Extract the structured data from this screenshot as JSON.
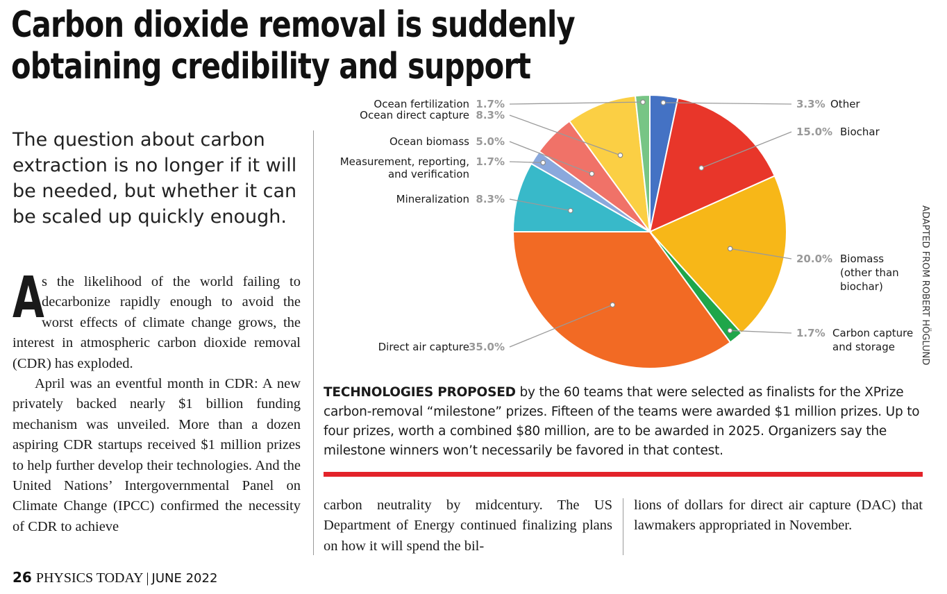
{
  "article": {
    "headline": "Carbon dioxide removal is suddenly obtaining credibility and support",
    "subhead": "The question about carbon extraction is no longer if it will be needed, but whether it can be scaled up quickly enough.",
    "dropcap": "A",
    "para1": "s the likelihood of the world failing to decarbonize rapidly enough to avoid the worst effects of climate change grows, the interest in atmospheric carbon dioxide removal (CDR) has exploded.",
    "para2": "April was an eventful month in CDR: A new privately backed nearly $1 billion funding mechanism was unveiled. More than a dozen aspiring CDR startups received $1 million prizes to help further develop their technologies. And the United Nations’ Intergovernmental Panel on Climate Change (IPCC) confirmed the necessity of CDR to achieve",
    "mid_text": "carbon neutrality by midcentury. The US Department of Energy continued finalizing plans on how it will spend the bil-",
    "right_text": "lions of dollars for direct air capture (DAC) that lawmakers appropriated in November."
  },
  "caption": {
    "lead": "TECHNOLOGIES PROPOSED",
    "text": " by the 60 teams that were selected as finalists for the XPrize carbon-removal “milestone” prizes. Fifteen of the teams were awarded $1 million prizes. Up to four prizes, worth a combined $80 million, are to be awarded in 2025. Organizers say the milestone winners won’t necessarily be favored in that contest."
  },
  "credit": "ADAPTED FROM ROBERT HÖGLUND",
  "footer": {
    "page": "26",
    "magazine": "PHYSICS TODAY",
    "separator": "|",
    "date": "JUNE 2022"
  },
  "chart_data": {
    "type": "pie",
    "slices": [
      {
        "label": "Other",
        "value": 3.3,
        "pct": "3.3%",
        "color": "#4472c4",
        "side": "right"
      },
      {
        "label": "Biochar",
        "value": 15.0,
        "pct": "15.0%",
        "color": "#e8362a",
        "side": "right"
      },
      {
        "label": "Biomass (other than biochar)",
        "lines": [
          "Biomass",
          "(other than",
          "biochar)"
        ],
        "value": 20.0,
        "pct": "20.0%",
        "color": "#f7b718",
        "side": "right"
      },
      {
        "label": "Carbon capture and storage",
        "lines": [
          "Carbon capture",
          "and storage"
        ],
        "value": 1.7,
        "pct": "1.7%",
        "color": "#1fa64a",
        "side": "right"
      },
      {
        "label": "Direct air capture",
        "value": 35.0,
        "pct": "35.0%",
        "color": "#f26a24",
        "side": "left"
      },
      {
        "label": "Mineralization",
        "value": 8.3,
        "pct": "8.3%",
        "color": "#38b9c9",
        "side": "left"
      },
      {
        "label": "Measurement, reporting, and verification",
        "lines": [
          "Measurement, reporting,",
          "and verification"
        ],
        "value": 1.7,
        "pct": "1.7%",
        "color": "#8aa8dc",
        "side": "left"
      },
      {
        "label": "Ocean biomass",
        "value": 5.0,
        "pct": "5.0%",
        "color": "#f07268",
        "side": "left"
      },
      {
        "label": "Ocean direct capture",
        "value": 8.3,
        "pct": "8.3%",
        "color": "#fbcf44",
        "side": "left"
      },
      {
        "label": "Ocean fertilization",
        "value": 1.7,
        "pct": "1.7%",
        "color": "#77c585",
        "side": "left"
      }
    ]
  }
}
